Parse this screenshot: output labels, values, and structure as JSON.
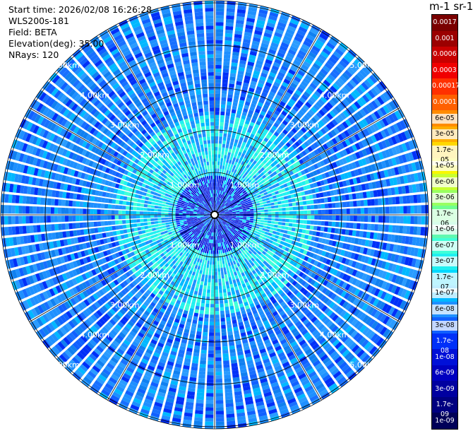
{
  "info": {
    "start_time": "Start time: 2026/02/08 16:26:28",
    "instrument": "WLS200s-181",
    "field": "Field: BETA",
    "elevation": "Elevation(deg): 35.00",
    "nrays": "NRays: 120"
  },
  "colorbar": {
    "unit_label": "m-1 sr-1",
    "labels": [
      "0.0017",
      "0.001",
      "0.0006",
      "0.0003",
      "0.00017",
      "0.0001",
      "6e-05",
      "3e-05",
      "1.7e-05",
      "1e-05",
      "6e-06",
      "3e-06",
      "1.7e-06",
      "1e-06",
      "6e-07",
      "3e-07",
      "1.7e-07",
      "1e-07",
      "6e-08",
      "3e-08",
      "1.7e-08",
      "1e-08",
      "6e-09",
      "3e-09",
      "1.7e-09",
      "1e-09"
    ],
    "colors": [
      "#7a0000",
      "#9b0000",
      "#c80000",
      "#f00000",
      "#ff3000",
      "#ff6000",
      "#ff8c00",
      "#ffae00",
      "#ffd800",
      "#f8f800",
      "#c8ff30",
      "#98ff60",
      "#70ff90",
      "#60f8b0",
      "#40ffd8",
      "#20f0f0",
      "#00d8ff",
      "#00b8ff",
      "#1e90ff",
      "#1060ff",
      "#0030f8",
      "#0010d8",
      "#0000c0",
      "#0000a0",
      "#000080",
      "#000058"
    ]
  },
  "range_labels": [
    "1.00km",
    "2.00km",
    "3.00km",
    "4.00km",
    "5.00km"
  ]
}
